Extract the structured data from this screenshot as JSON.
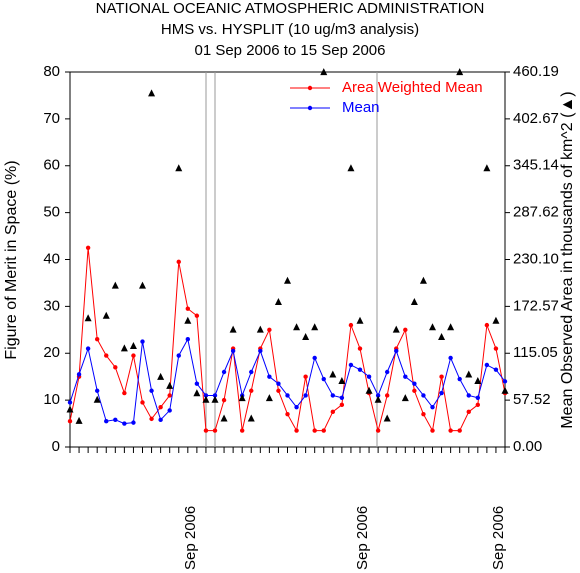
{
  "chart_data": {
    "type": "line",
    "title": "NATIONAL OCEANIC ATMOSPHERIC ADMINISTRATION",
    "subtitle": [
      "HMS vs. HYSPLIT (10 ug/m3 analysis)",
      "01 Sep 2006 to 15 Sep 2006"
    ],
    "ylabel": "Figure of Merit in Space (%)",
    "y2label": "Mean Observed Area in thousands of km^2 (▲)",
    "categories": [
      null,
      null,
      null,
      null,
      null,
      null,
      null,
      null,
      null,
      null,
      null,
      null,
      null,
      null,
      "Sep 2006",
      null,
      null,
      null,
      null,
      null,
      null,
      null,
      null,
      null,
      null,
      null,
      null,
      null,
      null,
      null,
      null,
      null,
      null,
      "Sep 2006",
      null,
      null,
      null,
      null,
      null,
      null,
      null,
      null,
      null,
      null,
      null,
      null,
      null,
      null,
      "Sep 2006"
    ],
    "ylim": [
      0,
      80
    ],
    "yticks": [
      0,
      10,
      20,
      30,
      40,
      50,
      60,
      70,
      80
    ],
    "y2lim": [
      0,
      460.19
    ],
    "y2ticks": [
      {
        "value": 0,
        "label": "0.00"
      },
      {
        "value": 57.52,
        "label": "57.52"
      },
      {
        "value": 115.05,
        "label": "115.05"
      },
      {
        "value": 172.57,
        "label": "172.57"
      },
      {
        "value": 230.1,
        "label": "230.10"
      },
      {
        "value": 287.62,
        "label": "287.62"
      },
      {
        "value": 345.14,
        "label": "345.14"
      },
      {
        "value": 402.67,
        "label": "402.67"
      },
      {
        "value": 460.19,
        "label": "460.19"
      }
    ],
    "legend": "upper right",
    "series": [
      {
        "name": "Area Weighted Mean",
        "color": "#ff0000",
        "marker": "circle",
        "values": [
          5.5,
          15,
          42.5,
          23,
          19.5,
          17,
          11.5,
          19.5,
          9.5,
          6,
          8.5,
          11,
          39.5,
          29.5,
          28,
          3.5,
          3.5,
          10,
          21,
          3.5,
          12,
          21,
          25,
          12,
          7,
          3.5,
          15,
          3.5,
          3.5,
          7.5,
          9,
          26,
          21,
          11.5,
          3.5,
          11,
          21,
          25,
          12,
          7,
          3.5,
          15,
          3.5,
          3.5,
          7.5,
          9,
          26,
          21,
          11.5
        ]
      },
      {
        "name": "Mean",
        "color": "#0000ff",
        "marker": "circle",
        "values": [
          9.5,
          15.5,
          21,
          12,
          5.5,
          5.8,
          5,
          5.2,
          22.5,
          12,
          5.8,
          7.8,
          19.5,
          23,
          13.5,
          11,
          11,
          16,
          20.5,
          11,
          16,
          20.5,
          15,
          13.5,
          11,
          8.5,
          11,
          19,
          14.5,
          11,
          10.5,
          17.5,
          16.5,
          15,
          11,
          16,
          20.5,
          15,
          13.5,
          11,
          8.5,
          11.5,
          19,
          14.5,
          11,
          10.5,
          17.5,
          16.5,
          14
        ]
      },
      {
        "color": "#000000",
        "marker": "triangle",
        "axis": "y2",
        "values": [
          46,
          32,
          158,
          58,
          161,
          198,
          121,
          124,
          198,
          434,
          86,
          75,
          342,
          155,
          66,
          58,
          58,
          35,
          144,
          60,
          35,
          144,
          60,
          178,
          204,
          147,
          135,
          147,
          460,
          89,
          81,
          342,
          155,
          69,
          58,
          35,
          144,
          60,
          178,
          204,
          147,
          135,
          147,
          460,
          89,
          81,
          342,
          155,
          69
        ]
      }
    ]
  }
}
